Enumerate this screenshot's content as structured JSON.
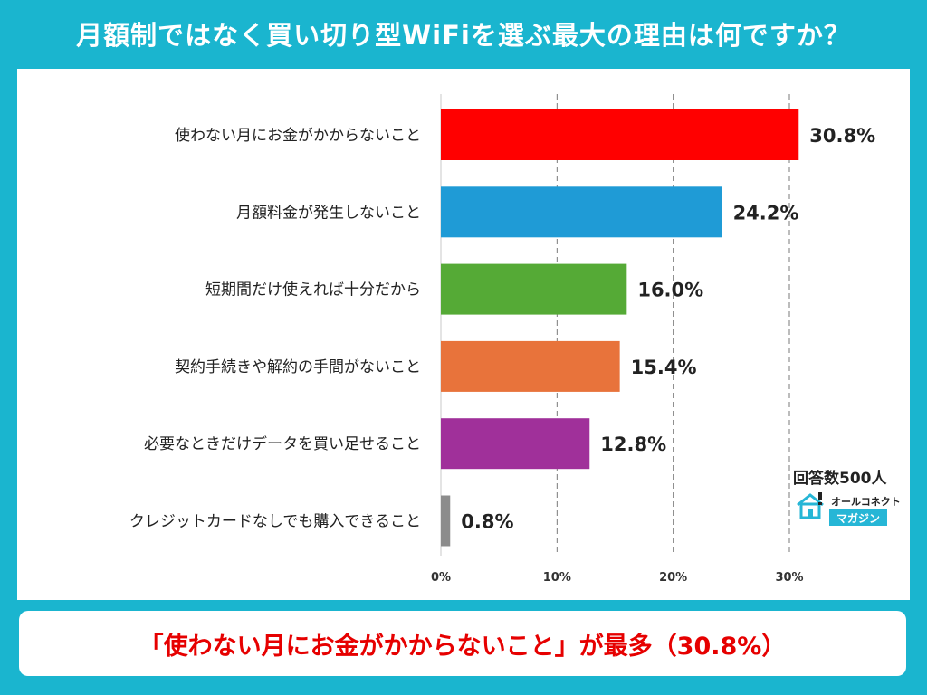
{
  "header": {
    "title": "月額制ではなく買い切り型WiFiを選ぶ最大の理由は何ですか？"
  },
  "chart_data": {
    "type": "bar",
    "orientation": "horizontal",
    "categories": [
      "使わない月にお金がかからないこと",
      "月額料金が発生しないこと",
      "短期間だけ使えれば十分だから",
      "契約手続きや解約の手間がないこと",
      "必要なときだけデータを買い足せること",
      "クレジットカードなしでも購入できること"
    ],
    "values": [
      30.8,
      24.2,
      16.0,
      15.4,
      12.8,
      0.8
    ],
    "value_labels": [
      "30.8%",
      "24.2%",
      "16.0%",
      "15.4%",
      "12.8%",
      "0.8%"
    ],
    "colors": [
      "#ff0000",
      "#1f9bd6",
      "#55aa36",
      "#e8733b",
      "#a0309a",
      "#8c8c8c"
    ],
    "xlim": [
      0,
      30
    ],
    "xticks": [
      0,
      10,
      20,
      30
    ],
    "xtick_labels": [
      "0%",
      "10%",
      "20%",
      "30%"
    ],
    "grid": "vertical dashed",
    "legend": "none"
  },
  "meta": {
    "respondents": "回答数500人",
    "logo_top": "オールコネクト",
    "logo_bottom": "マガジン"
  },
  "footer": {
    "summary": "「使わない月にお金がかからないこと」が最多（30.8%）"
  }
}
